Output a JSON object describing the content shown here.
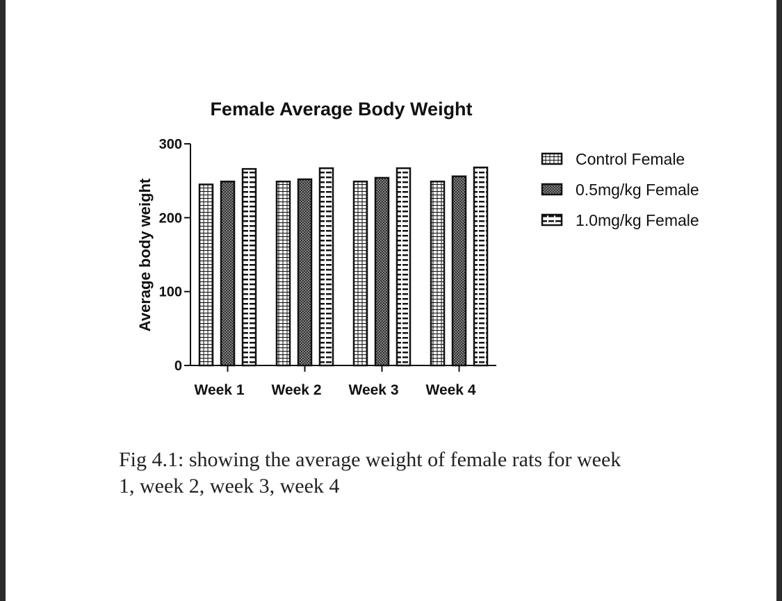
{
  "chart_data": {
    "type": "bar",
    "title": "Female Average Body Weight",
    "xlabel": "",
    "ylabel": "Average body weight",
    "categories": [
      "Week 1",
      "Week 2",
      "Week 3",
      "Week 4"
    ],
    "series": [
      {
        "name": "Control Female",
        "values": [
          245,
          249,
          249,
          249
        ],
        "pattern": "brick"
      },
      {
        "name": "0.5mg/kg Female",
        "values": [
          249,
          252,
          254,
          256
        ],
        "pattern": "crosshatch"
      },
      {
        "name": "1.0mg/kg Female",
        "values": [
          266,
          267,
          267,
          268
        ],
        "pattern": "dash"
      }
    ],
    "ylim": [
      0,
      300
    ],
    "yticks": [
      0,
      100,
      200,
      300
    ],
    "grid": false,
    "legend": "right"
  },
  "caption": {
    "line1": "Fig 4.1: showing the average weight of female rats for week",
    "line2": "1, week 2, week 3, week 4"
  },
  "colors": {
    "ink": "#111111",
    "background": "#ffffff",
    "frame": "#2b2b2b"
  }
}
